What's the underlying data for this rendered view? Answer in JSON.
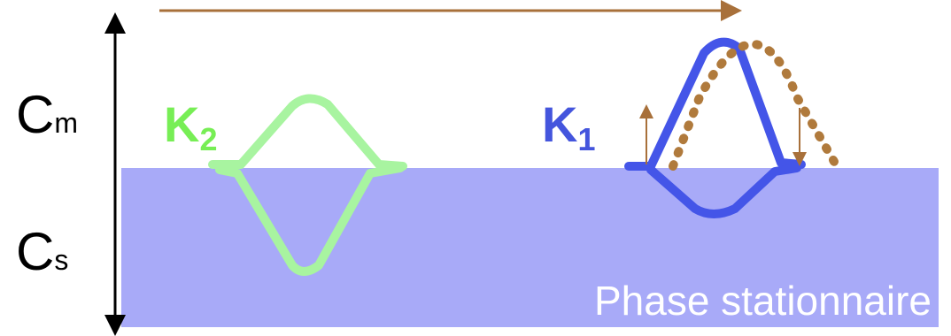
{
  "axis_labels": {
    "mobile": {
      "letter": "C",
      "subscript": "m"
    },
    "stationary": {
      "letter": "C",
      "subscript": "s"
    }
  },
  "peaks": [
    {
      "letter": "K",
      "subscript": "2"
    },
    {
      "letter": "K",
      "subscript": "1"
    }
  ],
  "phase_label": "Phase stationnaire"
}
